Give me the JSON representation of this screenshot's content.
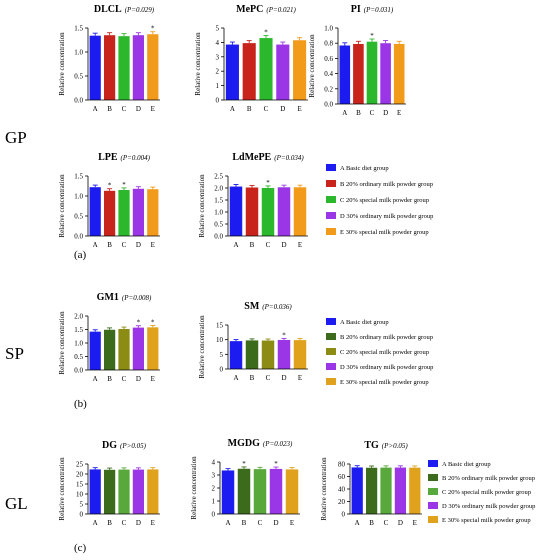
{
  "sections": [
    {
      "label": "GP",
      "panel": "(a)"
    },
    {
      "label": "SP",
      "panel": "(b)"
    },
    {
      "label": "GL",
      "panel": "(c)"
    }
  ],
  "legend": {
    "a": [
      "A Basic diet group",
      "B 20% ordinary milk powder group",
      "C 20% special milk powder group",
      "D 30% ordinary milk powder group",
      "E 30% special milk powder group"
    ],
    "b": [
      "A Basic diet group",
      "B 20% ordinary milk powder group",
      "C 20% special milk powder group",
      "D 30% ordinary milk powder group",
      "E 30% special milk powder group"
    ],
    "c": [
      "A Basic diet group",
      "B 20% ordinary milk powder group",
      "C 20% special milk powder group",
      "D 30% ordinary milk powder group",
      "E 30% special milk powder group"
    ]
  },
  "colors": {
    "a": [
      "#1c1cf0",
      "#c8241c",
      "#2cb82c",
      "#9a36e6",
      "#f29a1a"
    ],
    "b": [
      "#1c1cf0",
      "#3c6b1c",
      "#8c8c14",
      "#9a36e6",
      "#e0a21c"
    ],
    "c": [
      "#1c1cf0",
      "#3c6b1c",
      "#58a83c",
      "#9a36e6",
      "#e0a21c"
    ]
  },
  "chart_data": [
    {
      "type": "bar",
      "title": "DLCL",
      "p": "(P=0.029)",
      "ylabel": "Relative concentration",
      "categories": [
        "A",
        "B",
        "C",
        "D",
        "E"
      ],
      "values": [
        1.34,
        1.35,
        1.33,
        1.35,
        1.37
      ],
      "ylim": [
        0,
        1.5
      ],
      "yticks": [
        "0.0",
        "0.5",
        "1.0",
        "1.5"
      ],
      "marks": [
        "",
        "",
        "",
        "",
        "*"
      ],
      "palette": "a"
    },
    {
      "type": "bar",
      "title": "MePC",
      "p": "(P=0.021)",
      "ylabel": "Relative concentration",
      "categories": [
        "A",
        "B",
        "C",
        "D",
        "E"
      ],
      "values": [
        3.85,
        3.95,
        4.3,
        3.85,
        4.15
      ],
      "ylim": [
        0,
        5
      ],
      "yticks": [
        "0",
        "1",
        "2",
        "3",
        "4",
        "5"
      ],
      "marks": [
        "",
        "",
        "*",
        "",
        ""
      ],
      "palette": "a"
    },
    {
      "type": "bar",
      "title": "PI",
      "p": "(P=0.031)",
      "ylabel": "Relative concentration",
      "categories": [
        "A",
        "B",
        "C",
        "D",
        "E"
      ],
      "values": [
        0.77,
        0.79,
        0.82,
        0.8,
        0.79
      ],
      "ylim": [
        0,
        1.0
      ],
      "yticks": [
        "0.0",
        "0.2",
        "0.4",
        "0.6",
        "0.8",
        "1.0"
      ],
      "marks": [
        "",
        "",
        "*",
        "",
        ""
      ],
      "palette": "a"
    },
    {
      "type": "bar",
      "title": "LPE",
      "p": "(P=0.004)",
      "ylabel": "Relative concentration",
      "categories": [
        "A",
        "B",
        "C",
        "D",
        "E"
      ],
      "values": [
        1.22,
        1.13,
        1.15,
        1.18,
        1.17
      ],
      "ylim": [
        0,
        1.5
      ],
      "yticks": [
        "0.0",
        "0.5",
        "1.0",
        "1.5"
      ],
      "marks": [
        "",
        "*",
        "*",
        "",
        ""
      ],
      "palette": "a"
    },
    {
      "type": "bar",
      "title": "LdMePE",
      "p": "(P=0.034)",
      "ylabel": "Relative concentration",
      "categories": [
        "A",
        "B",
        "C",
        "D",
        "E"
      ],
      "values": [
        2.06,
        2.02,
        2.0,
        2.03,
        2.03
      ],
      "ylim": [
        0,
        2.5
      ],
      "yticks": [
        "0.0",
        "0.5",
        "1.0",
        "1.5",
        "2.0",
        "2.5"
      ],
      "marks": [
        "",
        "",
        "*",
        "",
        ""
      ],
      "palette": "a"
    },
    {
      "type": "bar",
      "title": "GM1",
      "p": "(P=0.008)",
      "ylabel": "Relative concentration",
      "categories": [
        "A",
        "B",
        "C",
        "D",
        "E"
      ],
      "values": [
        1.42,
        1.49,
        1.52,
        1.57,
        1.58
      ],
      "ylim": [
        0,
        2.0
      ],
      "yticks": [
        "0.0",
        "0.5",
        "1.0",
        "1.5",
        "2.0"
      ],
      "marks": [
        "",
        "",
        "",
        "*",
        "*"
      ],
      "palette": "b"
    },
    {
      "type": "bar",
      "title": "SM",
      "p": "(P=0.036)",
      "ylabel": "Relative concentration",
      "categories": [
        "A",
        "B",
        "C",
        "D",
        "E"
      ],
      "values": [
        9.5,
        9.75,
        9.7,
        9.9,
        9.85
      ],
      "ylim": [
        0,
        15
      ],
      "yticks": [
        "0",
        "5",
        "10",
        "15"
      ],
      "marks": [
        "",
        "",
        "",
        "*",
        ""
      ],
      "palette": "b"
    },
    {
      "type": "bar",
      "title": "DG",
      "p": "(P>0.05)",
      "ylabel": "Relative concentration",
      "categories": [
        "A",
        "B",
        "C",
        "D",
        "E"
      ],
      "values": [
        22.3,
        22.1,
        22.2,
        22.2,
        22.3
      ],
      "ylim": [
        0,
        25
      ],
      "yticks": [
        "0",
        "5",
        "10",
        "15",
        "20",
        "25"
      ],
      "marks": [
        "",
        "",
        "",
        "",
        ""
      ],
      "palette": "c"
    },
    {
      "type": "bar",
      "title": "MGDG",
      "p": "(P=0.023)",
      "ylabel": "Relative concentration",
      "categories": [
        "A",
        "B",
        "C",
        "D",
        "E"
      ],
      "values": [
        3.35,
        3.48,
        3.45,
        3.47,
        3.43
      ],
      "ylim": [
        0,
        4
      ],
      "yticks": [
        "0",
        "1",
        "2",
        "3",
        "4"
      ],
      "marks": [
        "",
        "*",
        "",
        "*",
        ""
      ],
      "palette": "c"
    },
    {
      "type": "bar",
      "title": "TG",
      "p": "(P>0.05)",
      "ylabel": "Relative concentration",
      "categories": [
        "A",
        "B",
        "C",
        "D",
        "E"
      ],
      "values": [
        74.5,
        74.0,
        74.2,
        74.3,
        74.1
      ],
      "ylim": [
        0,
        80
      ],
      "yticks": [
        "0",
        "20",
        "40",
        "60",
        "80"
      ],
      "marks": [
        "",
        "",
        "",
        "",
        ""
      ],
      "palette": "c"
    }
  ]
}
